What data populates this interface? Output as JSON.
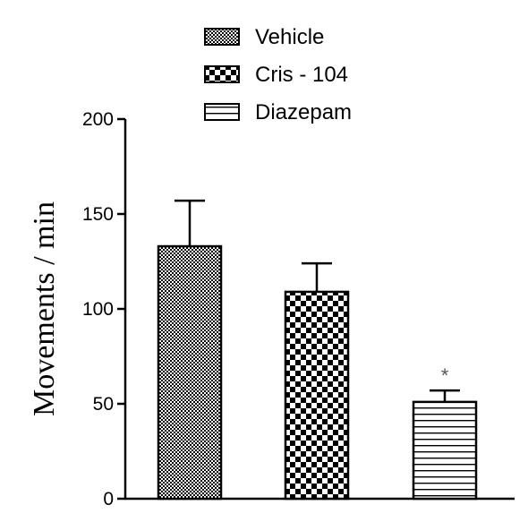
{
  "chart_data": {
    "type": "bar",
    "ylabel": "Movements / min",
    "ylim": [
      0,
      200
    ],
    "yticks": [
      0,
      50,
      100,
      150,
      200
    ],
    "categories": [
      "Vehicle",
      "Cris - 104",
      "Diazepam"
    ],
    "values": [
      133,
      109,
      51
    ],
    "errors": [
      24,
      15,
      6
    ],
    "annotations": [
      "",
      "",
      "*"
    ],
    "legend": [
      {
        "label": "Vehicle",
        "pattern": "fine-check"
      },
      {
        "label": "Cris - 104",
        "pattern": "coarse-check"
      },
      {
        "label": "Diazepam",
        "pattern": "horizontal-lines"
      }
    ],
    "legend_placement": "top",
    "grid": false,
    "colors": {
      "ink": "#000000",
      "background": "#ffffff",
      "annotation": "#555555"
    }
  }
}
